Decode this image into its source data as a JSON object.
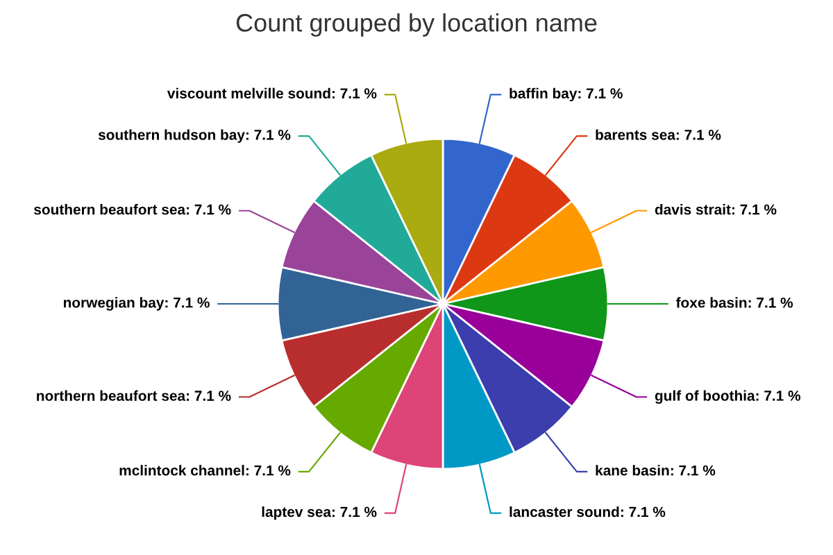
{
  "chart_data": {
    "type": "pie",
    "title": "Count grouped by location name",
    "categories": [
      "baffin bay",
      "barents sea",
      "davis strait",
      "foxe basin",
      "gulf of boothia",
      "kane basin",
      "lancaster sound",
      "laptev sea",
      "mclintock channel",
      "northern beaufort sea",
      "norwegian bay",
      "southern beaufort sea",
      "southern hudson bay",
      "viscount melville sound"
    ],
    "values": [
      7.1,
      7.1,
      7.1,
      7.1,
      7.1,
      7.1,
      7.1,
      7.1,
      7.1,
      7.1,
      7.1,
      7.1,
      7.1,
      7.1
    ],
    "value_labels": [
      "7.1 %",
      "7.1 %",
      "7.1 %",
      "7.1 %",
      "7.1 %",
      "7.1 %",
      "7.1 %",
      "7.1 %",
      "7.1 %",
      "7.1 %",
      "7.1 %",
      "7.1 %",
      "7.1 %",
      "7.1 %"
    ],
    "colors": [
      "#3366cc",
      "#dc3912",
      "#ff9900",
      "#109618",
      "#990099",
      "#3b3eac",
      "#0099c6",
      "#dd4477",
      "#66aa00",
      "#b82e2e",
      "#316395",
      "#994499",
      "#22aa99",
      "#aaaa11"
    ],
    "legend": false
  }
}
